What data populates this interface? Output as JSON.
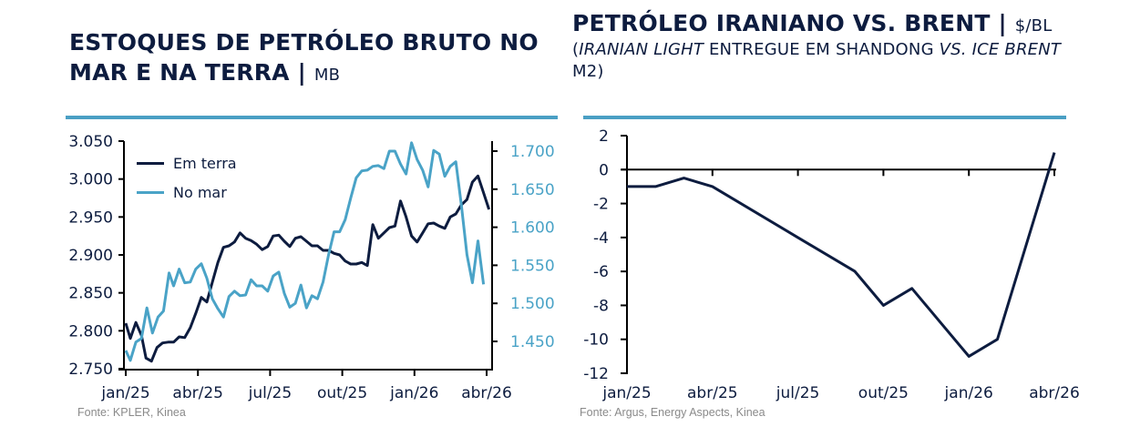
{
  "panels": {
    "left": {
      "title_bold": "ESTOQUES DE PETRÓLEO BRUTO NO MAR E NA TERRA |",
      "title_unit": "MB",
      "source": "Fonte: KPLER, Kinea"
    },
    "right": {
      "title_bold": "PETRÓLEO IRANIANO VS. BRENT |",
      "title_unit": "$/BL",
      "subtitle_open": "(",
      "subtitle_italic1": "IRANIAN LIGHT",
      "subtitle_mid": " ENTREGUE EM SHANDONG ",
      "subtitle_italic2": "VS. ICE BRENT",
      "subtitle_end": " M2)",
      "source": "Fonte: Argus, Energy Aspects, Kinea"
    }
  },
  "colors": {
    "dark_navy": "#0d1c3f",
    "light_blue": "#4aa3c7",
    "rule": "#4a9fc4",
    "source_gray": "#8a8a8a"
  },
  "chart_data": [
    {
      "type": "line",
      "title": "Estoques de petróleo bruto no mar e na terra",
      "unit": "MB",
      "x_tick_labels": [
        "jan/25",
        "abr/25",
        "jul/25",
        "out/25",
        "jan/26",
        "abr/26"
      ],
      "x_range": [
        "jan/25",
        "abr/26"
      ],
      "y_left": {
        "ylim": [
          2.75,
          3.05
        ],
        "ticks": [
          "3.050",
          "3.000",
          "2.950",
          "2.900",
          "2.850",
          "2.800",
          "2.750"
        ],
        "tick_values": [
          3.05,
          3.0,
          2.95,
          2.9,
          2.85,
          2.8,
          2.75
        ]
      },
      "y_right": {
        "ylim": [
          1.4165,
          1.7155
        ],
        "ticks": [
          "1.700",
          "1.650",
          "1.600",
          "1.550",
          "1.500",
          "1.450"
        ],
        "tick_values": [
          1.7,
          1.65,
          1.6,
          1.55,
          1.5,
          1.45
        ]
      },
      "legend": [
        "Em terra",
        "No mar"
      ],
      "legend_position": "top-left",
      "grid": false,
      "x_fraction": "weekly observations spanning jan/25 to abr/26; the x position of each point is given as months since jan/25",
      "series": [
        {
          "name": "Em terra",
          "axis": "left",
          "color": "#0d1c3f",
          "x_months": [
            0,
            0.19,
            0.42,
            0.65,
            0.84,
            1.07,
            1.3,
            1.53,
            1.76,
            1.99,
            2.22,
            2.45,
            2.68,
            2.91,
            3.14,
            3.37,
            3.6,
            3.83,
            4.06,
            4.29,
            4.52,
            4.75,
            4.98,
            5.21,
            5.44,
            5.67,
            5.9,
            6.13,
            6.36,
            6.59,
            6.82,
            7.05,
            7.28,
            7.51,
            7.74,
            7.97,
            8.2,
            8.43,
            8.66,
            8.89,
            9.12,
            9.35,
            9.58,
            9.81,
            10.04,
            10.27,
            10.5,
            10.73,
            10.96,
            11.19,
            11.42,
            11.65,
            11.88,
            12.11,
            12.34,
            12.57,
            12.8,
            13.03,
            13.26,
            13.49,
            13.72,
            13.95,
            14.18,
            14.41,
            14.64,
            14.87,
            15.1
          ],
          "values": [
            2.81,
            2.79,
            2.811,
            2.794,
            2.764,
            2.76,
            2.778,
            2.784,
            2.785,
            2.785,
            2.792,
            2.791,
            2.804,
            2.823,
            2.844,
            2.838,
            2.864,
            2.89,
            2.91,
            2.912,
            2.917,
            2.929,
            2.922,
            2.919,
            2.914,
            2.907,
            2.911,
            2.925,
            2.926,
            2.918,
            2.911,
            2.922,
            2.924,
            2.918,
            2.912,
            2.912,
            2.906,
            2.906,
            2.902,
            2.9,
            2.892,
            2.888,
            2.888,
            2.89,
            2.886,
            2.94,
            2.922,
            2.929,
            2.936,
            2.938,
            2.971,
            2.95,
            2.925,
            2.917,
            2.929,
            2.941,
            2.942,
            2.938,
            2.935,
            2.95,
            2.954,
            2.966,
            2.973,
            2.996,
            3.004,
            2.982,
            2.96
          ]
        },
        {
          "name": "No mar",
          "axis": "right",
          "color": "#4aa3c7",
          "x_months": [
            0,
            0.19,
            0.42,
            0.65,
            0.88,
            1.11,
            1.34,
            1.57,
            1.8,
            1.99,
            2.22,
            2.45,
            2.68,
            2.91,
            3.14,
            3.37,
            3.6,
            3.83,
            4.06,
            4.29,
            4.52,
            4.75,
            4.98,
            5.21,
            5.44,
            5.67,
            5.9,
            6.13,
            6.36,
            6.59,
            6.82,
            7.05,
            7.28,
            7.51,
            7.74,
            7.97,
            8.2,
            8.43,
            8.66,
            8.89,
            9.12,
            9.35,
            9.58,
            9.81,
            10.04,
            10.27,
            10.5,
            10.73,
            10.96,
            11.19,
            11.42,
            11.65,
            11.88,
            12.11,
            12.34,
            12.57,
            12.8,
            13.03,
            13.26,
            13.49,
            13.72,
            13.95,
            14.18,
            14.41,
            14.64,
            14.87
          ],
          "values": [
            1.438,
            1.425,
            1.449,
            1.454,
            1.494,
            1.461,
            1.482,
            1.49,
            1.54,
            1.523,
            1.545,
            1.527,
            1.528,
            1.545,
            1.552,
            1.533,
            1.506,
            1.493,
            1.482,
            1.509,
            1.516,
            1.51,
            1.511,
            1.531,
            1.523,
            1.523,
            1.516,
            1.536,
            1.541,
            1.513,
            1.495,
            1.5,
            1.524,
            1.494,
            1.51,
            1.506,
            1.528,
            1.564,
            1.594,
            1.594,
            1.61,
            1.638,
            1.665,
            1.674,
            1.675,
            1.68,
            1.681,
            1.677,
            1.7,
            1.7,
            1.683,
            1.67,
            1.711,
            1.689,
            1.675,
            1.653,
            1.701,
            1.696,
            1.667,
            1.68,
            1.686,
            1.629,
            1.564,
            1.527,
            1.582,
            1.525
          ]
        }
      ]
    },
    {
      "type": "line",
      "title": "Petróleo iraniano vs. Brent",
      "unit": "$/BL",
      "x_tick_labels": [
        "jan/25",
        "abr/25",
        "jul/25",
        "out/25",
        "jan/26",
        "abr/26"
      ],
      "y_ticks": [
        "2",
        "0",
        "-2",
        "-4",
        "-6",
        "-8",
        "-10",
        "-12"
      ],
      "y_tick_values": [
        2,
        0,
        -2,
        -4,
        -6,
        -8,
        -10,
        -12
      ],
      "ylim": [
        -12,
        2
      ],
      "grid": false,
      "legend": [],
      "series": [
        {
          "name": "Iranian Light (Shandong) vs. ICE Brent M2",
          "color": "#0d1c3f",
          "x_months": [
            0,
            1,
            2,
            3,
            6,
            8,
            9,
            10,
            11,
            12,
            13,
            15
          ],
          "values": [
            -1,
            -1,
            -0.5,
            -1,
            -4,
            -6,
            -8,
            -7,
            -9,
            -11,
            -10,
            1
          ]
        }
      ]
    }
  ]
}
